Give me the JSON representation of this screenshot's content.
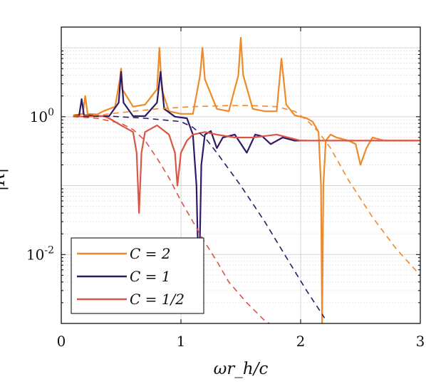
{
  "chart_data": {
    "type": "line",
    "title": "",
    "xlabel": "ωr_h/c",
    "ylabel": "|R|",
    "xlim": [
      0,
      3
    ],
    "ylim": [
      0.001,
      20
    ],
    "yscale": "log",
    "grid": true,
    "minor_grid": true,
    "legend_position": "bottom-left",
    "x_ticks": [
      0,
      1,
      2,
      3
    ],
    "x_tick_labels": [
      "0",
      "1",
      "2",
      "3"
    ],
    "y_ticks": [
      1,
      0.01
    ],
    "y_tick_labels": [
      {
        "base": "10",
        "exp": "0"
      },
      {
        "base": "10",
        "exp": "-2"
      }
    ],
    "series": [
      {
        "name": "C = 2",
        "color": "#ee8a2a",
        "style": "solid",
        "x": [
          0.1,
          0.18,
          0.2,
          0.22,
          0.3,
          0.35,
          0.45,
          0.49,
          0.5,
          0.51,
          0.6,
          0.7,
          0.8,
          0.82,
          0.84,
          0.9,
          1.0,
          1.1,
          1.16,
          1.18,
          1.2,
          1.3,
          1.4,
          1.48,
          1.5,
          1.52,
          1.6,
          1.7,
          1.8,
          1.84,
          1.88,
          1.95,
          2.05,
          2.1,
          2.15,
          2.17,
          2.18,
          2.19,
          2.21,
          2.25,
          2.3,
          2.4,
          2.46,
          2.5,
          2.55,
          2.6,
          2.7,
          2.8,
          2.9,
          3.0
        ],
        "y": [
          1.05,
          1.1,
          2.0,
          1.1,
          1.08,
          1.2,
          1.4,
          3.5,
          5.0,
          2.5,
          1.4,
          1.5,
          2.5,
          10.0,
          2.5,
          1.2,
          1.1,
          1.1,
          4.0,
          10.0,
          3.5,
          1.3,
          1.2,
          4.0,
          14.0,
          4.0,
          1.3,
          1.2,
          1.2,
          7.0,
          1.5,
          1.05,
          0.95,
          0.85,
          0.6,
          0.1,
          0.001,
          0.1,
          0.45,
          0.55,
          0.5,
          0.45,
          0.4,
          0.2,
          0.35,
          0.5,
          0.45,
          0.45,
          0.45,
          0.45
        ]
      },
      {
        "name": "C = 1",
        "color": "#2e1a66",
        "style": "solid",
        "x": [
          0.1,
          0.15,
          0.17,
          0.19,
          0.22,
          0.3,
          0.4,
          0.48,
          0.5,
          0.52,
          0.6,
          0.7,
          0.8,
          0.83,
          0.86,
          0.95,
          1.05,
          1.1,
          1.13,
          1.15,
          1.17,
          1.2,
          1.25,
          1.3,
          1.35,
          1.45,
          1.55,
          1.62,
          1.68,
          1.75,
          1.85,
          1.95,
          2.05
        ],
        "y": [
          1.02,
          1.05,
          1.8,
          1.05,
          1.05,
          1.02,
          1.02,
          1.6,
          4.5,
          1.6,
          1.02,
          1.02,
          1.6,
          4.5,
          1.3,
          1.0,
          0.95,
          0.55,
          0.1,
          0.003,
          0.2,
          0.55,
          0.62,
          0.35,
          0.5,
          0.55,
          0.3,
          0.55,
          0.52,
          0.4,
          0.5,
          0.45,
          0.45
        ]
      },
      {
        "name": "C = 1/2",
        "color": "#d95545",
        "style": "solid",
        "x": [
          0.1,
          0.2,
          0.3,
          0.35,
          0.4,
          0.5,
          0.6,
          0.63,
          0.65,
          0.67,
          0.7,
          0.8,
          0.9,
          0.95,
          0.97,
          1.0,
          1.05,
          1.1,
          1.2,
          1.3,
          1.45,
          1.6,
          1.8,
          2.0,
          2.2,
          2.4,
          2.6,
          2.8,
          3.0
        ],
        "y": [
          1.02,
          1.0,
          1.02,
          1.02,
          0.95,
          0.75,
          0.6,
          0.3,
          0.04,
          0.3,
          0.6,
          0.75,
          0.55,
          0.3,
          0.1,
          0.3,
          0.45,
          0.55,
          0.6,
          0.55,
          0.5,
          0.5,
          0.55,
          0.45,
          0.45,
          0.45,
          0.45,
          0.45,
          0.45
        ]
      },
      {
        "name": "",
        "color": "#ee8a2a",
        "style": "dashed",
        "x": [
          0.1,
          0.3,
          0.5,
          0.8,
          1.1,
          1.4,
          1.6,
          1.8,
          1.95,
          2.05,
          2.15,
          2.25,
          2.4,
          2.6,
          2.8,
          3.0
        ],
        "y": [
          1.02,
          1.05,
          1.15,
          1.3,
          1.4,
          1.45,
          1.45,
          1.4,
          1.2,
          0.9,
          0.6,
          0.35,
          0.12,
          0.035,
          0.012,
          0.005
        ]
      },
      {
        "name": "",
        "color": "#2e1a66",
        "style": "dashed",
        "x": [
          0.1,
          0.4,
          0.7,
          0.85,
          1.0,
          1.1,
          1.2,
          1.3,
          1.5,
          1.7,
          1.9,
          2.05,
          2.2
        ],
        "y": [
          1.0,
          1.02,
          0.95,
          0.9,
          0.85,
          0.7,
          0.5,
          0.3,
          0.1,
          0.03,
          0.008,
          0.003,
          0.0012
        ]
      },
      {
        "name": "",
        "color": "#d95545",
        "style": "dashed",
        "x": [
          0.1,
          0.3,
          0.5,
          0.6,
          0.7,
          0.8,
          0.9,
          1.0,
          1.1,
          1.2,
          1.3,
          1.4,
          1.55,
          1.7,
          1.78
        ],
        "y": [
          1.0,
          0.95,
          0.8,
          0.65,
          0.45,
          0.25,
          0.13,
          0.06,
          0.03,
          0.015,
          0.008,
          0.004,
          0.002,
          0.0011,
          0.0009
        ]
      }
    ]
  }
}
